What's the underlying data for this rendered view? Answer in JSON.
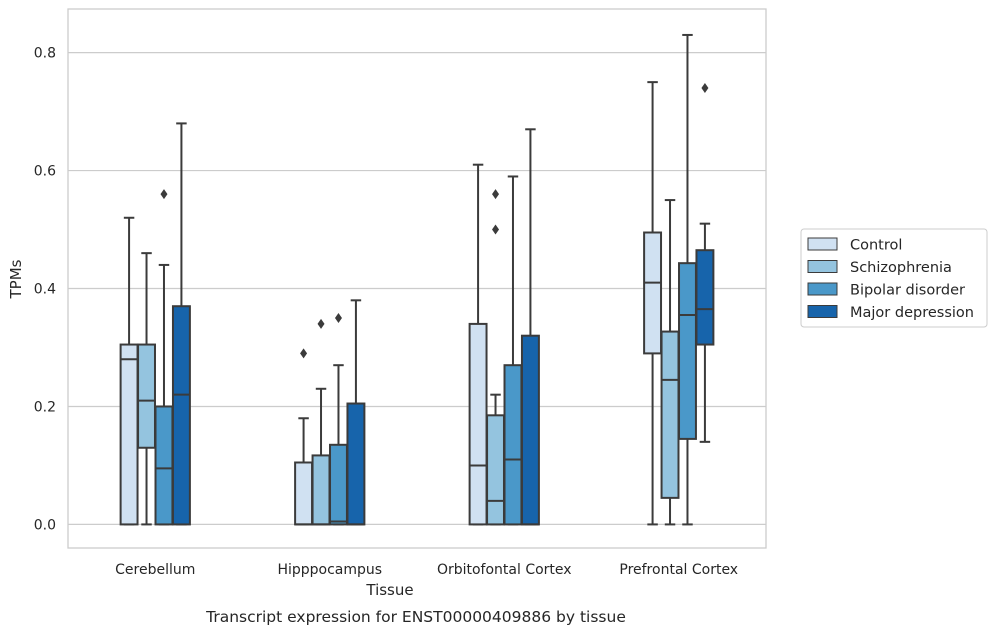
{
  "chart_data": {
    "type": "box",
    "xlabel": "Tissue",
    "ylabel": "TPMs",
    "caption": "Transcript expression for ENST00000409886 by tissue",
    "ylim": [
      -0.04,
      0.874
    ],
    "yticks": [
      "0.0",
      "0.2",
      "0.4",
      "0.6",
      "0.8"
    ],
    "ytick_values": [
      0.0,
      0.2,
      0.4,
      0.6,
      0.8
    ],
    "grid": "horizontal",
    "legend_position": "right",
    "categories": [
      "Cerebellum",
      "Hipppocampus",
      "Orbitofontal Cortex",
      "Prefrontal Cortex"
    ],
    "series": [
      {
        "name": "Control",
        "color": "#d0e1f2",
        "boxes": [
          {
            "whislo": 0.0,
            "q1": 0.0,
            "med": 0.28,
            "q3": 0.305,
            "whishi": 0.52,
            "fliers": []
          },
          {
            "whislo": 0.0,
            "q1": 0.0,
            "med": 0.0,
            "q3": 0.105,
            "whishi": 0.18,
            "fliers": [
              0.29
            ]
          },
          {
            "whislo": 0.0,
            "q1": 0.0,
            "med": 0.1,
            "q3": 0.34,
            "whishi": 0.61,
            "fliers": []
          },
          {
            "whislo": 0.0,
            "q1": 0.29,
            "med": 0.41,
            "q3": 0.495,
            "whishi": 0.75,
            "fliers": []
          }
        ]
      },
      {
        "name": "Schizophrenia",
        "color": "#94c4df",
        "boxes": [
          {
            "whislo": 0.0,
            "q1": 0.13,
            "med": 0.21,
            "q3": 0.305,
            "whishi": 0.46,
            "fliers": []
          },
          {
            "whislo": 0.0,
            "q1": 0.0,
            "med": 0.0,
            "q3": 0.117,
            "whishi": 0.23,
            "fliers": [
              0.34
            ]
          },
          {
            "whislo": 0.0,
            "q1": 0.0,
            "med": 0.04,
            "q3": 0.185,
            "whishi": 0.22,
            "fliers": [
              0.5,
              0.56
            ]
          },
          {
            "whislo": 0.0,
            "q1": 0.045,
            "med": 0.245,
            "q3": 0.327,
            "whishi": 0.55,
            "fliers": []
          }
        ]
      },
      {
        "name": "Bipolar disorder",
        "color": "#4a98c9",
        "boxes": [
          {
            "whislo": 0.0,
            "q1": 0.0,
            "med": 0.095,
            "q3": 0.2,
            "whishi": 0.44,
            "fliers": [
              0.56
            ]
          },
          {
            "whislo": 0.0,
            "q1": 0.0,
            "med": 0.005,
            "q3": 0.135,
            "whishi": 0.27,
            "fliers": [
              0.35
            ]
          },
          {
            "whislo": 0.0,
            "q1": 0.0,
            "med": 0.11,
            "q3": 0.27,
            "whishi": 0.59,
            "fliers": []
          },
          {
            "whislo": 0.0,
            "q1": 0.145,
            "med": 0.355,
            "q3": 0.443,
            "whishi": 0.83,
            "fliers": []
          }
        ]
      },
      {
        "name": "Major depression",
        "color": "#1764ab",
        "boxes": [
          {
            "whislo": 0.0,
            "q1": 0.0,
            "med": 0.22,
            "q3": 0.37,
            "whishi": 0.68,
            "fliers": []
          },
          {
            "whislo": 0.0,
            "q1": 0.0,
            "med": 0.0,
            "q3": 0.205,
            "whishi": 0.38,
            "fliers": []
          },
          {
            "whislo": 0.0,
            "q1": 0.0,
            "med": 0.0,
            "q3": 0.32,
            "whishi": 0.67,
            "fliers": []
          },
          {
            "whislo": 0.14,
            "q1": 0.305,
            "med": 0.365,
            "q3": 0.465,
            "whishi": 0.51,
            "fliers": [
              0.74
            ]
          }
        ]
      }
    ]
  }
}
